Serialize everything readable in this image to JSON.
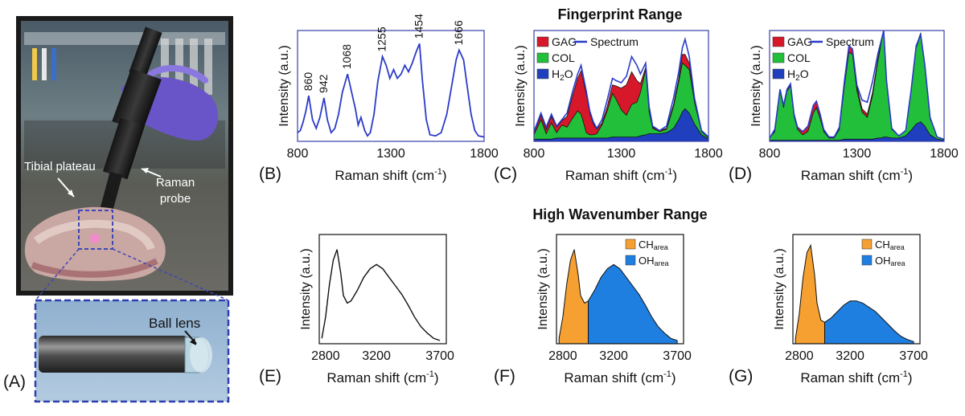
{
  "figure": {
    "section_fingerprint": "Fingerprint Range",
    "section_high_wavenumber": "High Wavenumber Range"
  },
  "photo": {
    "panel_label": "(A)",
    "label_tibial_plateau": "Tibial plateau",
    "label_raman_probe_line1": "Raman",
    "label_raman_probe_line2": "probe",
    "label_ball_lens": "Ball lens"
  },
  "chart_data": [
    {
      "id": "B",
      "type": "line",
      "panel_label": "(B)",
      "xlabel": "Raman shift (cm",
      "xlabel_sup": "-1",
      "xlabel_end": ")",
      "ylabel": "Intensity (a.u.)",
      "xlim": [
        800,
        1800
      ],
      "xticks": [
        800,
        1300,
        1800
      ],
      "series": [
        {
          "x": [
            800,
            815,
            830,
            845,
            860,
            880,
            900,
            920,
            942,
            960,
            980,
            1000,
            1020,
            1040,
            1068,
            1090,
            1110,
            1125,
            1140,
            1160,
            1175,
            1190,
            1210,
            1230,
            1255,
            1275,
            1295,
            1315,
            1335,
            1355,
            1375,
            1395,
            1415,
            1435,
            1454,
            1470,
            1490,
            1510,
            1540,
            1570,
            1600,
            1630,
            1650,
            1666,
            1690,
            1710,
            1730,
            1750,
            1770,
            1800
          ],
          "y": [
            0.08,
            0.1,
            0.18,
            0.28,
            0.42,
            0.2,
            0.12,
            0.22,
            0.4,
            0.2,
            0.08,
            0.12,
            0.25,
            0.45,
            0.62,
            0.45,
            0.3,
            0.15,
            0.22,
            0.1,
            0.05,
            0.08,
            0.25,
            0.55,
            0.78,
            0.7,
            0.58,
            0.66,
            0.58,
            0.62,
            0.7,
            0.64,
            0.72,
            0.82,
            0.9,
            0.55,
            0.2,
            0.06,
            0.05,
            0.08,
            0.25,
            0.55,
            0.75,
            0.84,
            0.75,
            0.5,
            0.25,
            0.1,
            0.05,
            0.04
          ]
        }
      ],
      "annotations": [
        {
          "x": 860,
          "text": "860"
        },
        {
          "x": 942,
          "text": "942"
        },
        {
          "x": 1068,
          "text": "1068"
        },
        {
          "x": 1255,
          "text": "1255"
        },
        {
          "x": 1454,
          "text": "1454"
        },
        {
          "x": 1666,
          "text": "1666"
        }
      ]
    },
    {
      "id": "C",
      "type": "area",
      "panel_label": "(C)",
      "xlabel": "Raman shift (cm",
      "xlabel_sup": "-1",
      "xlabel_end": ")",
      "ylabel": "Intensity (a.u.)",
      "xlim": [
        800,
        1800
      ],
      "xticks": [
        800,
        1300,
        1800
      ],
      "legend": [
        {
          "label": "GAG",
          "color": "#d7182a"
        },
        {
          "label": "COL",
          "color": "#22c03a"
        },
        {
          "label": "H",
          "sub": "2",
          "label_end": "O",
          "color": "#1f3fbf"
        },
        {
          "label": "Spectrum",
          "color": "#2b3bc8",
          "kind": "line"
        }
      ],
      "x": [
        800,
        840,
        870,
        900,
        930,
        960,
        990,
        1020,
        1050,
        1070,
        1100,
        1120,
        1140,
        1160,
        1190,
        1220,
        1250,
        1270,
        1300,
        1330,
        1360,
        1390,
        1410,
        1440,
        1460,
        1480,
        1520,
        1560,
        1600,
        1630,
        1650,
        1666,
        1690,
        1720,
        1760,
        1800
      ],
      "series": [
        {
          "name": "H2O",
          "values": [
            0.02,
            0.02,
            0.02,
            0.02,
            0.03,
            0.03,
            0.03,
            0.03,
            0.03,
            0.03,
            0.03,
            0.03,
            0.03,
            0.03,
            0.03,
            0.03,
            0.04,
            0.04,
            0.04,
            0.04,
            0.04,
            0.04,
            0.05,
            0.06,
            0.07,
            0.07,
            0.07,
            0.08,
            0.12,
            0.2,
            0.27,
            0.3,
            0.26,
            0.16,
            0.06,
            0.02
          ]
        },
        {
          "name": "COL",
          "values": [
            0.04,
            0.18,
            0.05,
            0.15,
            0.05,
            0.12,
            0.1,
            0.18,
            0.25,
            0.22,
            0.05,
            0.03,
            0.03,
            0.04,
            0.12,
            0.25,
            0.4,
            0.35,
            0.25,
            0.2,
            0.3,
            0.32,
            0.4,
            0.6,
            0.2,
            0.05,
            0.02,
            0.03,
            0.2,
            0.35,
            0.45,
            0.4,
            0.4,
            0.2,
            0.03,
            0.01
          ]
        },
        {
          "name": "GAG",
          "values": [
            0.02,
            0.04,
            0.04,
            0.06,
            0.05,
            0.04,
            0.1,
            0.2,
            0.3,
            0.4,
            0.35,
            0.2,
            0.1,
            0.04,
            0.02,
            0.04,
            0.08,
            0.12,
            0.2,
            0.28,
            0.3,
            0.2,
            0.08,
            0.02,
            0.01,
            0.01,
            0.01,
            0.01,
            0.02,
            0.03,
            0.08,
            0.1,
            0.06,
            0.03,
            0.01,
            0.01
          ]
        }
      ],
      "spectrum": [
        0.09,
        0.26,
        0.13,
        0.25,
        0.14,
        0.2,
        0.26,
        0.45,
        0.62,
        0.7,
        0.46,
        0.28,
        0.18,
        0.12,
        0.2,
        0.38,
        0.58,
        0.56,
        0.54,
        0.6,
        0.78,
        0.7,
        0.62,
        0.72,
        0.32,
        0.14,
        0.1,
        0.14,
        0.4,
        0.64,
        0.86,
        0.94,
        0.78,
        0.4,
        0.1,
        0.04
      ]
    },
    {
      "id": "D",
      "type": "area",
      "panel_label": "(D)",
      "xlabel": "Raman shift (cm",
      "xlabel_sup": "-1",
      "xlabel_end": ")",
      "ylabel": "Intensity (a.u.)",
      "xlim": [
        800,
        1800
      ],
      "xticks": [
        800,
        1300,
        1800
      ],
      "legend": [
        {
          "label": "GAG",
          "color": "#d7182a"
        },
        {
          "label": "COL",
          "color": "#22c03a"
        },
        {
          "label": "H",
          "sub": "2",
          "label_end": "O",
          "color": "#1f3fbf"
        },
        {
          "label": "Spectrum",
          "color": "#2b3bc8",
          "kind": "line"
        }
      ],
      "x": [
        800,
        830,
        860,
        880,
        900,
        920,
        940,
        960,
        990,
        1020,
        1050,
        1068,
        1090,
        1110,
        1140,
        1170,
        1200,
        1230,
        1255,
        1275,
        1300,
        1330,
        1360,
        1390,
        1420,
        1440,
        1454,
        1470,
        1500,
        1540,
        1580,
        1610,
        1640,
        1666,
        1690,
        1720,
        1760,
        1800
      ],
      "series": [
        {
          "name": "H2O",
          "values": [
            0.01,
            0.01,
            0.01,
            0.01,
            0.01,
            0.01,
            0.01,
            0.01,
            0.01,
            0.01,
            0.01,
            0.01,
            0.01,
            0.01,
            0.01,
            0.01,
            0.01,
            0.02,
            0.02,
            0.02,
            0.02,
            0.02,
            0.02,
            0.02,
            0.03,
            0.03,
            0.04,
            0.04,
            0.03,
            0.03,
            0.05,
            0.1,
            0.16,
            0.18,
            0.14,
            0.06,
            0.02,
            0.01
          ]
        },
        {
          "name": "COL",
          "values": [
            0.02,
            0.08,
            0.45,
            0.3,
            0.45,
            0.5,
            0.22,
            0.1,
            0.05,
            0.08,
            0.25,
            0.3,
            0.2,
            0.08,
            0.02,
            0.02,
            0.1,
            0.5,
            0.8,
            0.78,
            0.45,
            0.25,
            0.2,
            0.4,
            0.7,
            0.88,
            0.98,
            0.5,
            0.08,
            0.02,
            0.05,
            0.35,
            0.7,
            0.8,
            0.55,
            0.15,
            0.02,
            0.01
          ]
        },
        {
          "name": "GAG",
          "values": [
            0.0,
            0.02,
            0.02,
            0.02,
            0.02,
            0.02,
            0.02,
            0.02,
            0.03,
            0.05,
            0.07,
            0.06,
            0.04,
            0.02,
            0.01,
            0.01,
            0.02,
            0.05,
            0.06,
            0.05,
            0.04,
            0.03,
            0.03,
            0.03,
            0.02,
            0.02,
            0.01,
            0.01,
            0.01,
            0.0,
            0.0,
            0.01,
            0.02,
            0.02,
            0.02,
            0.01,
            0.0,
            0.0
          ]
        }
      ],
      "spectrum": [
        0.03,
        0.11,
        0.48,
        0.33,
        0.48,
        0.53,
        0.25,
        0.13,
        0.09,
        0.14,
        0.33,
        0.37,
        0.25,
        0.11,
        0.04,
        0.04,
        0.13,
        0.57,
        0.88,
        0.85,
        0.52,
        0.38,
        0.36,
        0.55,
        0.8,
        0.93,
        1.02,
        0.56,
        0.12,
        0.05,
        0.1,
        0.46,
        0.88,
        0.98,
        0.7,
        0.22,
        0.04,
        0.02
      ]
    },
    {
      "id": "E",
      "type": "line",
      "panel_label": "(E)",
      "xlabel": "Raman shift (cm",
      "xlabel_sup": "-1",
      "xlabel_end": ")",
      "ylabel": "Intensity (a.u.)",
      "xlim": [
        2750,
        3750
      ],
      "xticks": [
        2800,
        3200,
        3700
      ],
      "series": [
        {
          "x": [
            2770,
            2800,
            2830,
            2860,
            2890,
            2920,
            2940,
            2970,
            3000,
            3050,
            3100,
            3150,
            3200,
            3250,
            3300,
            3350,
            3400,
            3450,
            3500,
            3550,
            3600,
            3650,
            3700
          ],
          "y": [
            0.05,
            0.25,
            0.55,
            0.78,
            0.88,
            0.65,
            0.45,
            0.38,
            0.4,
            0.5,
            0.62,
            0.7,
            0.74,
            0.7,
            0.62,
            0.54,
            0.46,
            0.36,
            0.25,
            0.16,
            0.1,
            0.05,
            0.03
          ]
        }
      ]
    },
    {
      "id": "F",
      "type": "area",
      "panel_label": "(F)",
      "xlabel": "Raman shift (cm",
      "xlabel_sup": "-1",
      "xlabel_end": ")",
      "ylabel": "Intensity (a.u.)",
      "xlim": [
        2750,
        3750
      ],
      "xticks": [
        2800,
        3200,
        3700
      ],
      "split_x": 3000,
      "legend": [
        {
          "label": "CH",
          "sub": "area",
          "color": "#f5a031"
        },
        {
          "label": "OH",
          "sub": "area",
          "color": "#1f7fe0"
        }
      ],
      "x": [
        2770,
        2800,
        2830,
        2860,
        2890,
        2920,
        2940,
        2970,
        3000,
        3050,
        3100,
        3150,
        3200,
        3250,
        3300,
        3350,
        3400,
        3450,
        3500,
        3550,
        3600,
        3650,
        3700
      ],
      "y": [
        0.05,
        0.25,
        0.55,
        0.78,
        0.88,
        0.65,
        0.45,
        0.38,
        0.4,
        0.5,
        0.62,
        0.7,
        0.74,
        0.7,
        0.62,
        0.54,
        0.46,
        0.36,
        0.25,
        0.16,
        0.1,
        0.05,
        0.03
      ]
    },
    {
      "id": "G",
      "type": "area",
      "panel_label": "(G)",
      "xlabel": "Raman shift (cm",
      "xlabel_sup": "-1",
      "xlabel_end": ")",
      "ylabel": "Intensity (a.u.)",
      "xlim": [
        2750,
        3750
      ],
      "xticks": [
        2800,
        3200,
        3700
      ],
      "split_x": 3000,
      "legend": [
        {
          "label": "CH",
          "sub": "area",
          "color": "#f5a031"
        },
        {
          "label": "OH",
          "sub": "area",
          "color": "#1f7fe0"
        }
      ],
      "x": [
        2770,
        2800,
        2830,
        2860,
        2890,
        2920,
        2940,
        2970,
        3000,
        3050,
        3100,
        3150,
        3200,
        3250,
        3300,
        3350,
        3400,
        3450,
        3500,
        3550,
        3600,
        3650,
        3700
      ],
      "y": [
        0.05,
        0.28,
        0.62,
        0.85,
        0.92,
        0.65,
        0.38,
        0.22,
        0.2,
        0.24,
        0.3,
        0.36,
        0.4,
        0.4,
        0.38,
        0.34,
        0.3,
        0.24,
        0.18,
        0.12,
        0.07,
        0.04,
        0.02
      ]
    }
  ]
}
